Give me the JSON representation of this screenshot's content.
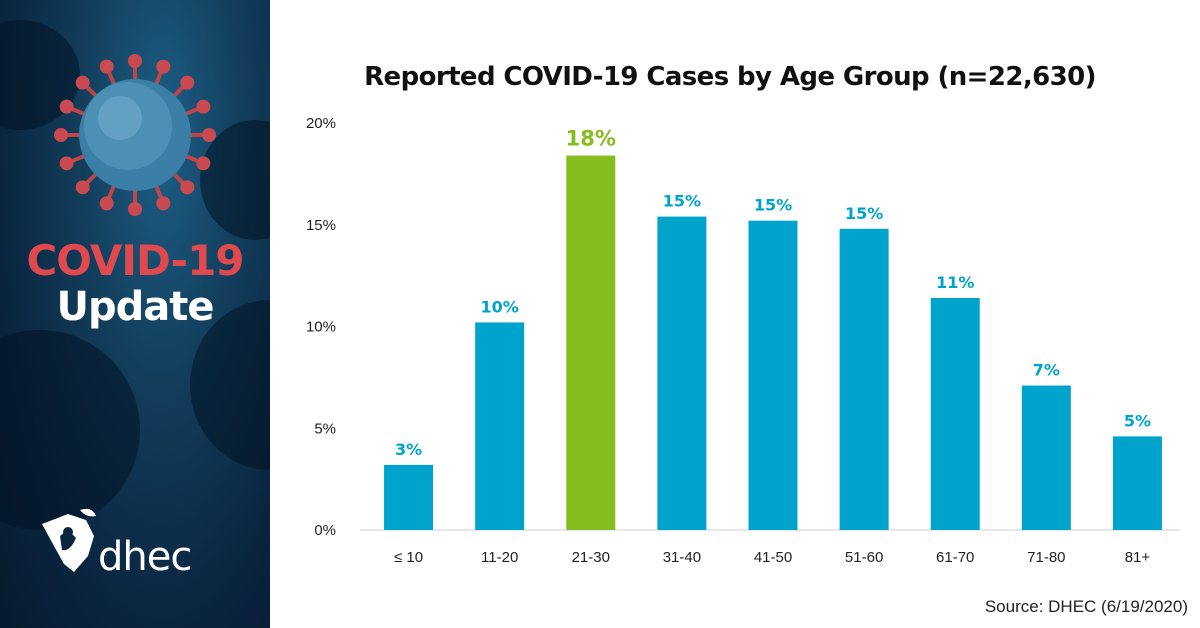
{
  "sidebar": {
    "headline_line1": "COVID-19",
    "headline_line2": "Update",
    "logo_text": "dhec",
    "icons": [
      "coronavirus-illustration",
      "dhec-logo-icon"
    ]
  },
  "colors": {
    "bar": "#00a3cc",
    "highlight_bar": "#86bc1e",
    "headline_red": "#e04a4f",
    "sidebar_bg": "#0a2540"
  },
  "chart_data": {
    "type": "bar",
    "title": "Reported COVID-19 Cases by Age Group (n=22,630)",
    "categories": [
      "≤ 10",
      "11-20",
      "21-30",
      "31-40",
      "41-50",
      "51-60",
      "61-70",
      "71-80",
      "81+"
    ],
    "values": [
      3.2,
      10.2,
      18.4,
      15.4,
      15.2,
      14.8,
      11.4,
      7.1,
      4.6
    ],
    "data_labels": [
      "3%",
      "10%",
      "18%",
      "15%",
      "15%",
      "15%",
      "11%",
      "7%",
      "5%"
    ],
    "highlight_index": 2,
    "ylim": [
      0,
      20
    ],
    "yticks": [
      0,
      5,
      10,
      15,
      20
    ],
    "ytick_labels": [
      "0%",
      "5%",
      "10%",
      "15%",
      "20%"
    ],
    "grid": false,
    "source": "Source: DHEC (6/19/2020)"
  }
}
